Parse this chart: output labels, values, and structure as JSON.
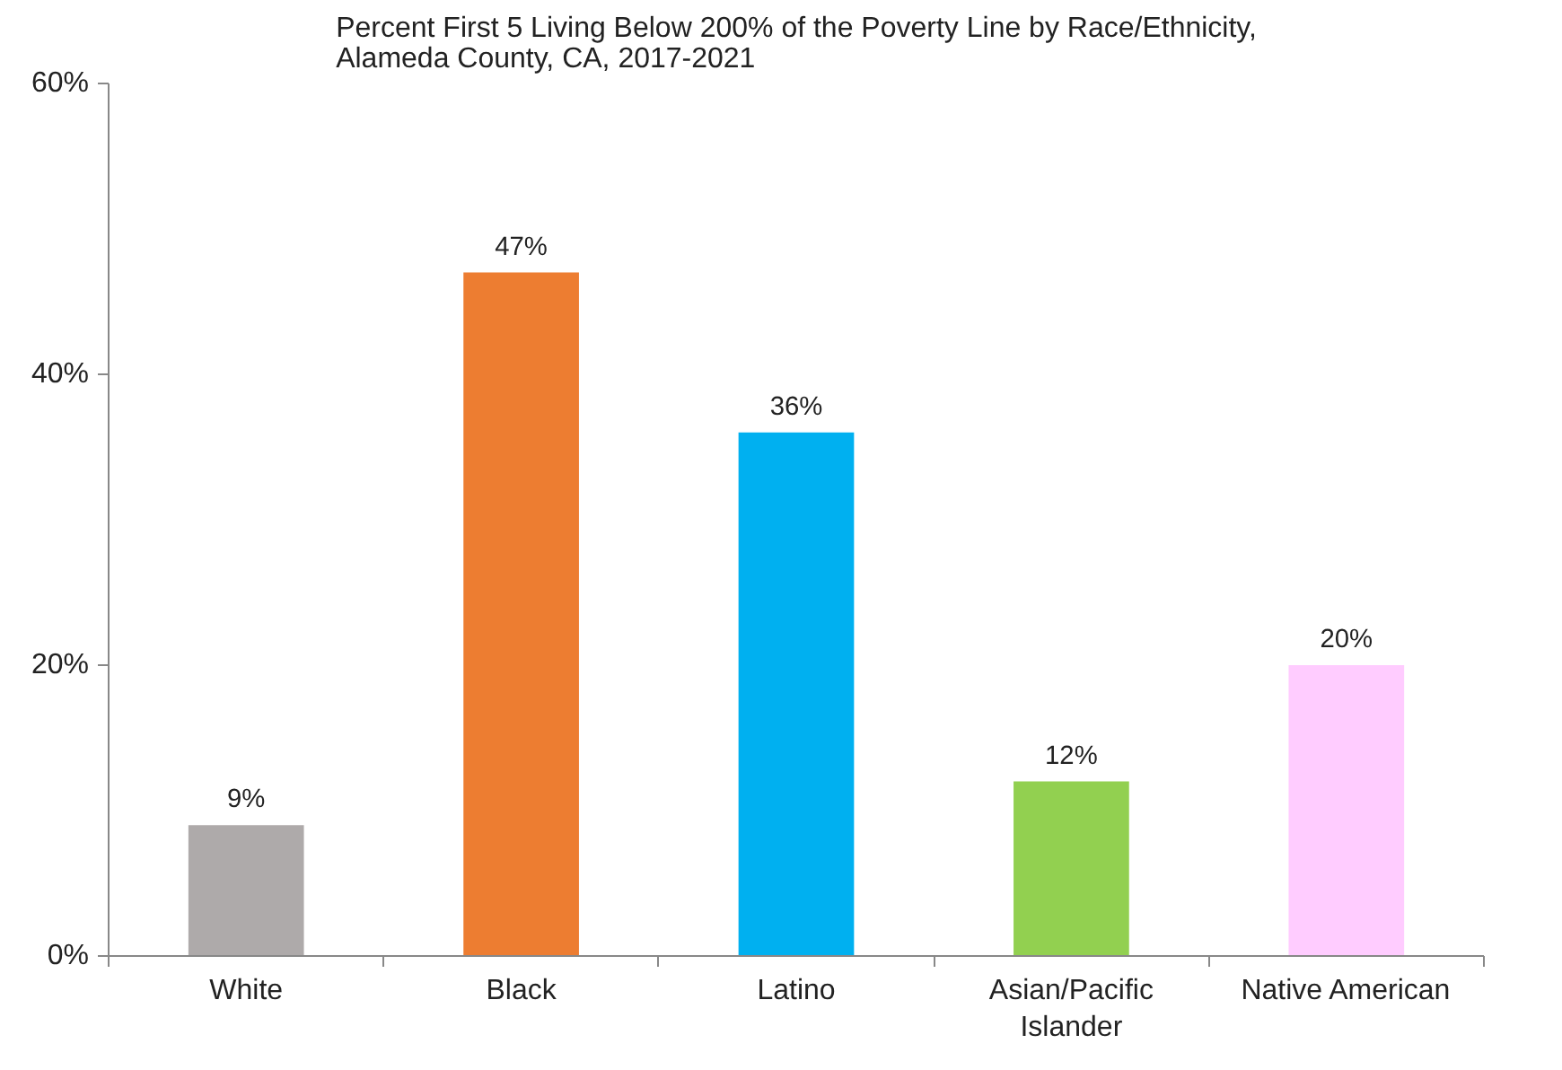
{
  "chart_data": {
    "type": "bar",
    "title": "Percent First 5 Living Below 200% of the Poverty Line by Race/Ethnicity, Alameda County, CA, 2017-2021",
    "categories": [
      "White",
      "Black",
      "Latino",
      "Asian/Pacific Islander",
      "Native American"
    ],
    "values": [
      9,
      47,
      36,
      12,
      20
    ],
    "value_labels": [
      "9%",
      "47%",
      "36%",
      "12%",
      "20%"
    ],
    "colors": [
      "#aeaaaa",
      "#ed7d31",
      "#00b0f0",
      "#92d050",
      "#ffccff"
    ],
    "ylim": [
      0,
      60
    ],
    "yticks": [
      {
        "value": 0,
        "label": "0%"
      },
      {
        "value": 20,
        "label": "20%"
      },
      {
        "value": 40,
        "label": "40%"
      },
      {
        "value": 60,
        "label": "60%"
      }
    ],
    "grid": false
  }
}
